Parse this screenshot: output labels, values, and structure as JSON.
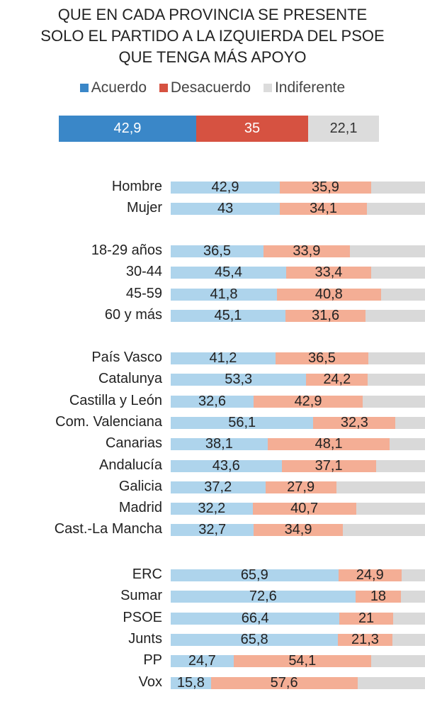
{
  "chart_data": {
    "type": "bar",
    "stacked": true,
    "orientation": "horizontal",
    "title": [
      "QUE EN CADA PROVINCIA SE PRESENTE",
      "SOLO EL PARTIDO A LA IZQUIERDA DEL PSOE",
      "QUE TENGA MÁS APOYO"
    ],
    "legend": [
      {
        "name": "Acuerdo",
        "color": "#3a87c8"
      },
      {
        "name": "Desacuerdo",
        "color": "#d65241"
      },
      {
        "name": "Indiferente",
        "color": "#dcdcdc"
      }
    ],
    "legend_position": "top",
    "total": {
      "values": [
        42.9,
        35,
        22.1
      ],
      "labels": [
        "42,9",
        "35",
        "22,1"
      ]
    },
    "row_colors": [
      "#aed4ec",
      "#f4ae95",
      "#d9d9d9"
    ],
    "groups": [
      [
        {
          "label": "Hombre",
          "acuerdo": 42.9,
          "desacuerdo": 35.9,
          "a": "42,9",
          "d": "35,9"
        },
        {
          "label": "Mujer",
          "acuerdo": 43,
          "desacuerdo": 34.1,
          "a": "43",
          "d": "34,1"
        }
      ],
      [
        {
          "label": "18-29 años",
          "acuerdo": 36.5,
          "desacuerdo": 33.9,
          "a": "36,5",
          "d": "33,9"
        },
        {
          "label": "30-44",
          "acuerdo": 45.4,
          "desacuerdo": 33.4,
          "a": "45,4",
          "d": "33,4"
        },
        {
          "label": "45-59",
          "acuerdo": 41.8,
          "desacuerdo": 40.8,
          "a": "41,8",
          "d": "40,8"
        },
        {
          "label": "60 y más",
          "acuerdo": 45.1,
          "desacuerdo": 31.6,
          "a": "45,1",
          "d": "31,6"
        }
      ],
      [
        {
          "label": "País Vasco",
          "acuerdo": 41.2,
          "desacuerdo": 36.5,
          "a": "41,2",
          "d": "36,5"
        },
        {
          "label": "Catalunya",
          "acuerdo": 53.3,
          "desacuerdo": 24.2,
          "a": "53,3",
          "d": "24,2"
        },
        {
          "label": "Castilla y León",
          "acuerdo": 32.6,
          "desacuerdo": 42.9,
          "a": "32,6",
          "d": "42,9"
        },
        {
          "label": "Com. Valenciana",
          "acuerdo": 56.1,
          "desacuerdo": 32.3,
          "a": "56,1",
          "d": "32,3"
        },
        {
          "label": "Canarias",
          "acuerdo": 38.1,
          "desacuerdo": 48.1,
          "a": "38,1",
          "d": "48,1"
        },
        {
          "label": "Andalucía",
          "acuerdo": 43.6,
          "desacuerdo": 37.1,
          "a": "43,6",
          "d": "37,1"
        },
        {
          "label": "Galicia",
          "acuerdo": 37.2,
          "desacuerdo": 27.9,
          "a": "37,2",
          "d": "27,9"
        },
        {
          "label": "Madrid",
          "acuerdo": 32.2,
          "desacuerdo": 40.7,
          "a": "32,2",
          "d": "40,7"
        },
        {
          "label": "Cast.-La Mancha",
          "acuerdo": 32.7,
          "desacuerdo": 34.9,
          "a": "32,7",
          "d": "34,9"
        }
      ],
      [
        {
          "label": "ERC",
          "acuerdo": 65.9,
          "desacuerdo": 24.9,
          "a": "65,9",
          "d": "24,9"
        },
        {
          "label": "Sumar",
          "acuerdo": 72.6,
          "desacuerdo": 18,
          "a": "72,6",
          "d": "18"
        },
        {
          "label": "PSOE",
          "acuerdo": 66.4,
          "desacuerdo": 21,
          "a": "66,4",
          "d": "21"
        },
        {
          "label": "Junts",
          "acuerdo": 65.8,
          "desacuerdo": 21.3,
          "a": "65,8",
          "d": "21,3"
        },
        {
          "label": "PP",
          "acuerdo": 24.7,
          "desacuerdo": 54.1,
          "a": "24,7",
          "d": "54,1"
        },
        {
          "label": "Vox",
          "acuerdo": 15.8,
          "desacuerdo": 57.6,
          "a": "15,8",
          "d": "57,6"
        }
      ]
    ]
  }
}
